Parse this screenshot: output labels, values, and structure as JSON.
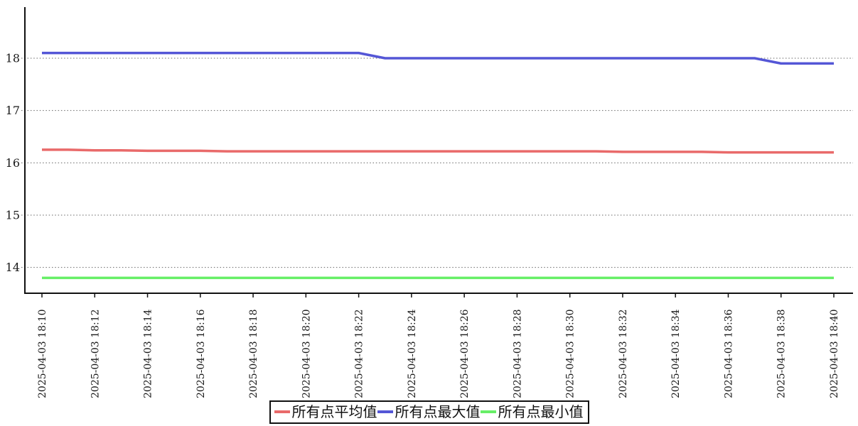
{
  "page": {
    "background": "#ffffff"
  },
  "chart_data": {
    "type": "line",
    "title": "",
    "xlabel": "",
    "ylabel": "",
    "x": [
      "2025-04-03 18:10",
      "2025-04-03 18:11",
      "2025-04-03 18:12",
      "2025-04-03 18:13",
      "2025-04-03 18:14",
      "2025-04-03 18:15",
      "2025-04-03 18:16",
      "2025-04-03 18:17",
      "2025-04-03 18:18",
      "2025-04-03 18:19",
      "2025-04-03 18:20",
      "2025-04-03 18:21",
      "2025-04-03 18:22",
      "2025-04-03 18:23",
      "2025-04-03 18:24",
      "2025-04-03 18:25",
      "2025-04-03 18:26",
      "2025-04-03 18:27",
      "2025-04-03 18:28",
      "2025-04-03 18:29",
      "2025-04-03 18:30",
      "2025-04-03 18:31",
      "2025-04-03 18:32",
      "2025-04-03 18:33",
      "2025-04-03 18:34",
      "2025-04-03 18:35",
      "2025-04-03 18:36",
      "2025-04-03 18:37",
      "2025-04-03 18:38",
      "2025-04-03 18:39",
      "2025-04-03 18:40"
    ],
    "x_tick_labels": [
      "2025-04-03 18:10",
      "2025-04-03 18:12",
      "2025-04-03 18:14",
      "2025-04-03 18:16",
      "2025-04-03 18:18",
      "2025-04-03 18:20",
      "2025-04-03 18:22",
      "2025-04-03 18:24",
      "2025-04-03 18:26",
      "2025-04-03 18:28",
      "2025-04-03 18:30",
      "2025-04-03 18:32",
      "2025-04-03 18:34",
      "2025-04-03 18:36",
      "2025-04-03 18:38",
      "2025-04-03 18:40"
    ],
    "yticks": [
      14,
      15,
      16,
      17,
      18
    ],
    "ylim": [
      13.5,
      19.0
    ],
    "grid": "horizontal-dotted",
    "legend_position": "bottom-center",
    "series": [
      {
        "name": "所有点平均值",
        "color": "#e96a6a",
        "values": [
          16.25,
          16.25,
          16.24,
          16.24,
          16.23,
          16.23,
          16.23,
          16.22,
          16.22,
          16.22,
          16.22,
          16.22,
          16.22,
          16.22,
          16.22,
          16.22,
          16.22,
          16.22,
          16.22,
          16.22,
          16.22,
          16.22,
          16.21,
          16.21,
          16.21,
          16.21,
          16.2,
          16.2,
          16.2,
          16.2,
          16.2
        ]
      },
      {
        "name": "所有点最大值",
        "color": "#5456d6",
        "values": [
          18.1,
          18.1,
          18.1,
          18.1,
          18.1,
          18.1,
          18.1,
          18.1,
          18.1,
          18.1,
          18.1,
          18.1,
          18.1,
          18.0,
          18.0,
          18.0,
          18.0,
          18.0,
          18.0,
          18.0,
          18.0,
          18.0,
          18.0,
          18.0,
          18.0,
          18.0,
          18.0,
          18.0,
          17.9,
          17.9,
          17.9
        ]
      },
      {
        "name": "所有点最小值",
        "color": "#67ef67",
        "values": [
          13.8,
          13.8,
          13.8,
          13.8,
          13.8,
          13.8,
          13.8,
          13.8,
          13.8,
          13.8,
          13.8,
          13.8,
          13.8,
          13.8,
          13.8,
          13.8,
          13.8,
          13.8,
          13.8,
          13.8,
          13.8,
          13.8,
          13.8,
          13.8,
          13.8,
          13.8,
          13.8,
          13.8,
          13.8,
          13.8,
          13.8
        ]
      }
    ],
    "colors": {
      "axis": "#111111",
      "grid": "#666666",
      "text": "#1a1a1a"
    }
  },
  "legend": {
    "items": [
      {
        "label": "所有点平均值",
        "color": "#e96a6a"
      },
      {
        "label": "所有点最大值",
        "color": "#5456d6"
      },
      {
        "label": "所有点最小值",
        "color": "#67ef67"
      }
    ]
  }
}
